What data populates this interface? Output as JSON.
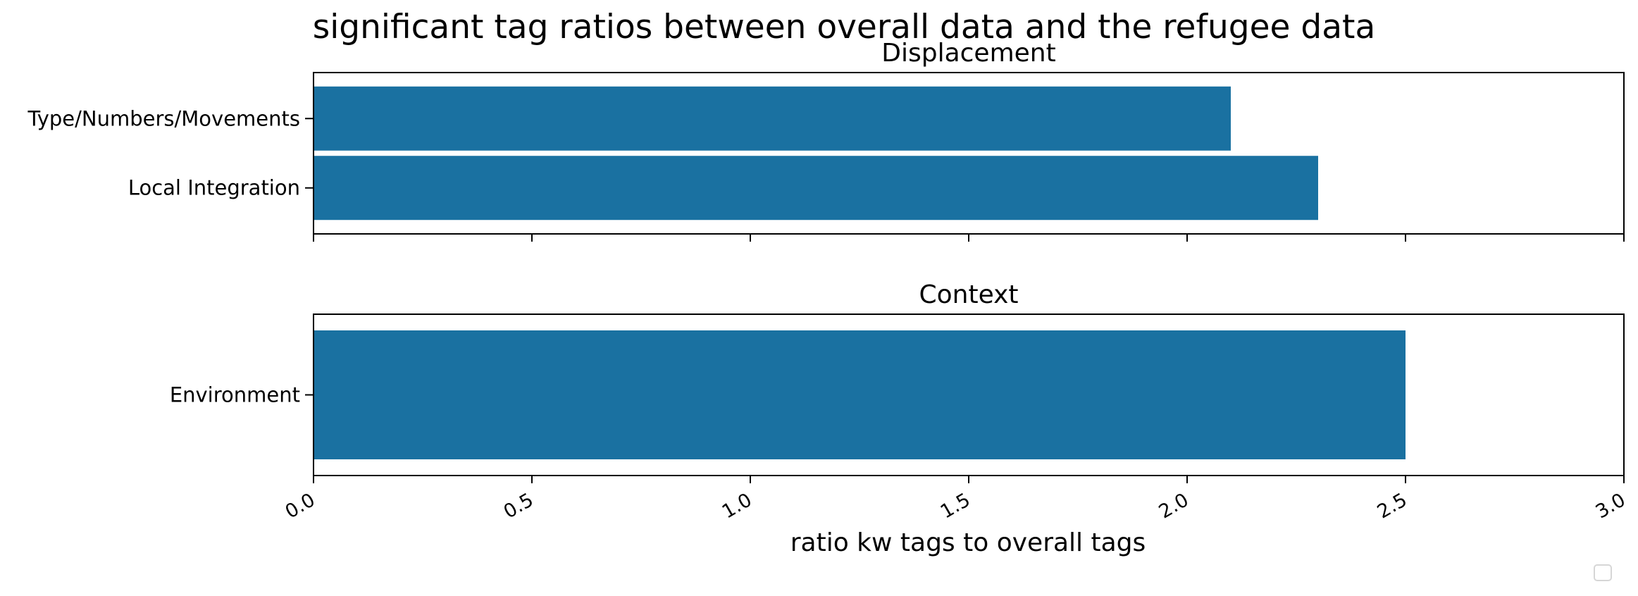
{
  "chart_data": {
    "type": "bar",
    "orientation": "horizontal",
    "title": "significant tag ratios between overall data and the refugee data",
    "xlabel": "ratio kw tags to overall tags",
    "xlim": [
      0,
      3
    ],
    "xticks": [
      "0.0",
      "0.5",
      "1.0",
      "1.5",
      "2.0",
      "2.5",
      "3.0"
    ],
    "bar_color": "#1a71a1",
    "grid": false,
    "legend": "bottom-right, empty",
    "panels": [
      {
        "title": "Displacement",
        "categories": [
          "Type/Numbers/Movements",
          "Local Integration"
        ],
        "values": [
          2.1,
          2.3
        ]
      },
      {
        "title": "Context",
        "categories": [
          "Environment"
        ],
        "values": [
          2.5
        ]
      }
    ]
  }
}
